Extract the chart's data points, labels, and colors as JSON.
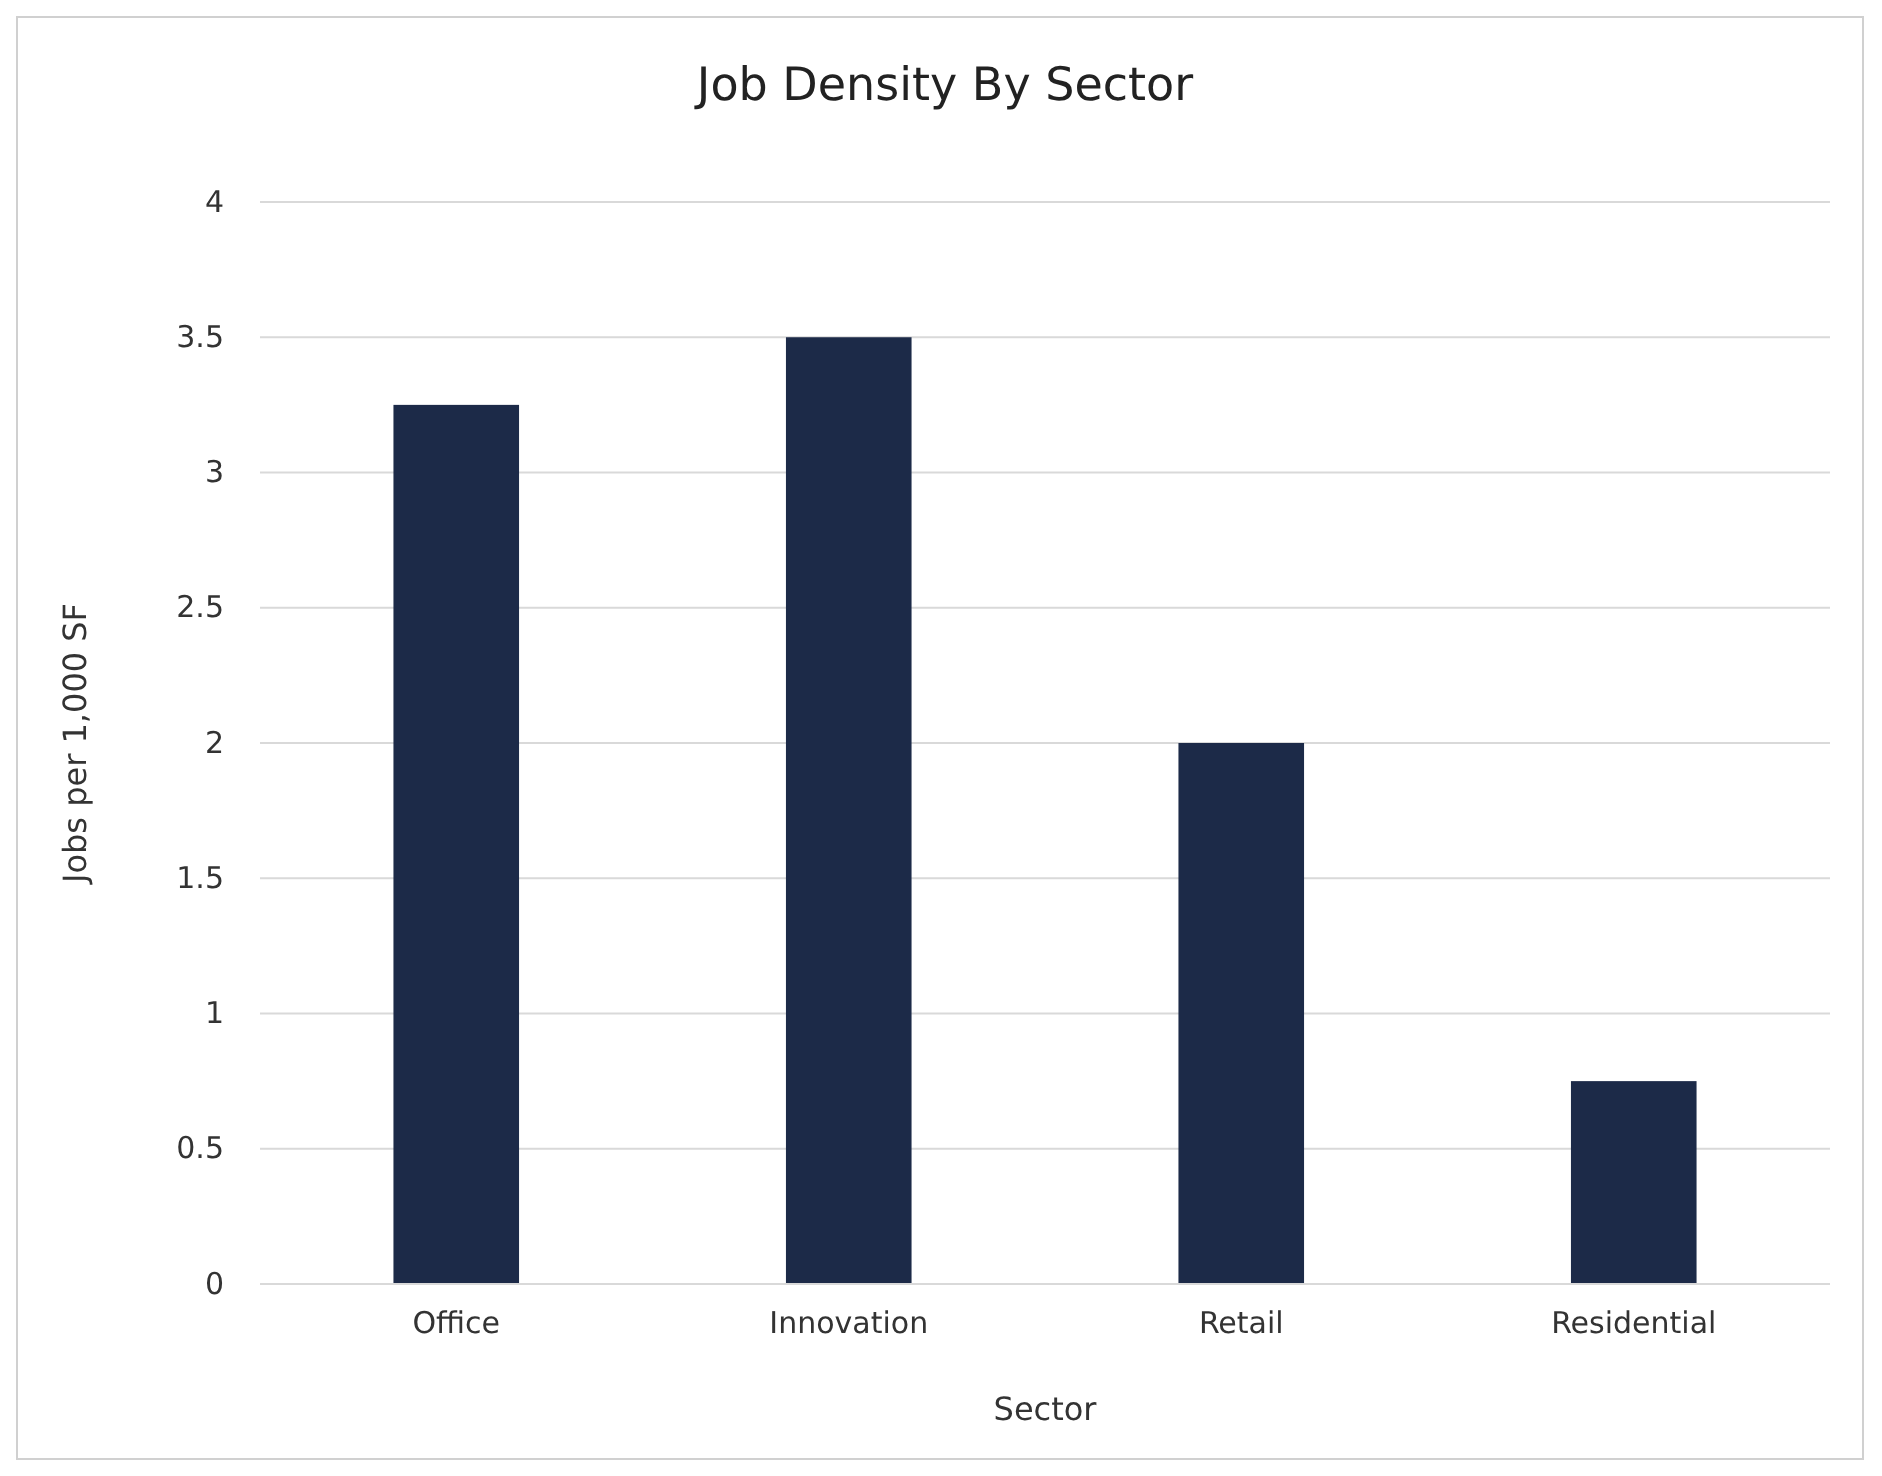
{
  "chart_data": {
    "type": "bar",
    "title": "Job Density By Sector",
    "xlabel": "Sector",
    "ylabel": "Jobs per 1,000 SF",
    "categories": [
      "Office",
      "Innovation",
      "Retail",
      "Residential"
    ],
    "values": [
      3.25,
      3.5,
      2,
      0.75
    ],
    "color": "#1c2a48",
    "ylim": [
      0,
      4
    ],
    "yticks": [
      0,
      0.5,
      1,
      1.5,
      2,
      2.5,
      3,
      3.5,
      4
    ],
    "grid": "y"
  }
}
